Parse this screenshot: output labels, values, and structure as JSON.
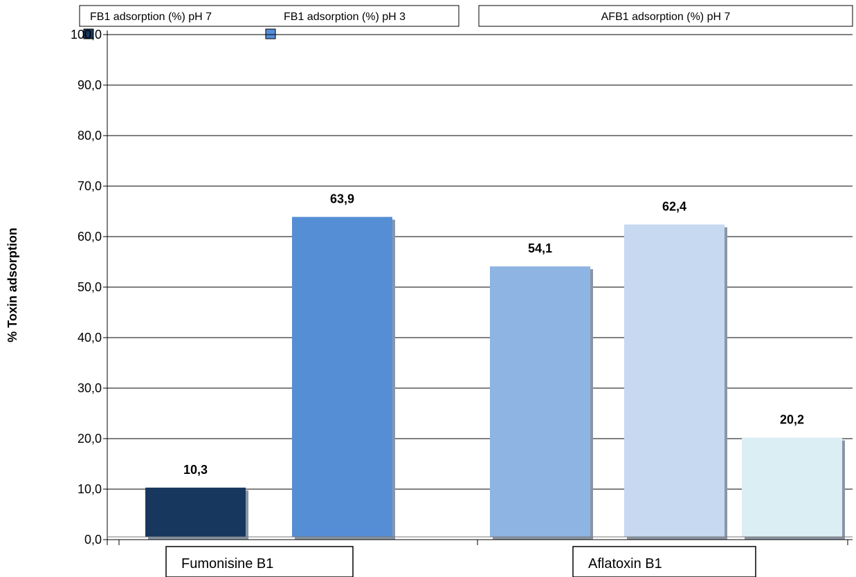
{
  "chart_data": {
    "type": "bar",
    "ylabel": "% Toxin adsorption",
    "ylim": [
      0,
      100
    ],
    "yticks": [
      "0,0",
      "10,0",
      "20,0",
      "30,0",
      "40,0",
      "50,0",
      "60,0",
      "70,0",
      "80,0",
      "90,0",
      "100,0"
    ],
    "grid": true,
    "legend_placement": "top",
    "legend_groups": [
      {
        "entries": [
          "FB1 adsorption (%) pH 7",
          "FB1 adsorption (%) pH 3"
        ]
      },
      {
        "entries": [
          "AFB1 adsorption (%) pH 7"
        ]
      }
    ],
    "categories": [
      "Fumonisine B1",
      "Aflatoxin B1"
    ],
    "bars": [
      {
        "category": "Fumonisine B1",
        "value": 10.3,
        "label": "10,3",
        "color": "#17375e"
      },
      {
        "category": "Fumonisine B1",
        "value": 63.9,
        "label": "63,9",
        "color": "#558ed5"
      },
      {
        "category": "Aflatoxin B1",
        "value": 54.1,
        "label": "54,1",
        "color": "#8eb4e3"
      },
      {
        "category": "Aflatoxin B1",
        "value": 62.4,
        "label": "62,4",
        "color": "#c6d9f1"
      },
      {
        "category": "Aflatoxin B1",
        "value": 20.2,
        "label": "20,2",
        "color": "#dbeef4"
      }
    ],
    "legend_marker_colors": [
      "#17375e",
      "#558ed5"
    ]
  }
}
